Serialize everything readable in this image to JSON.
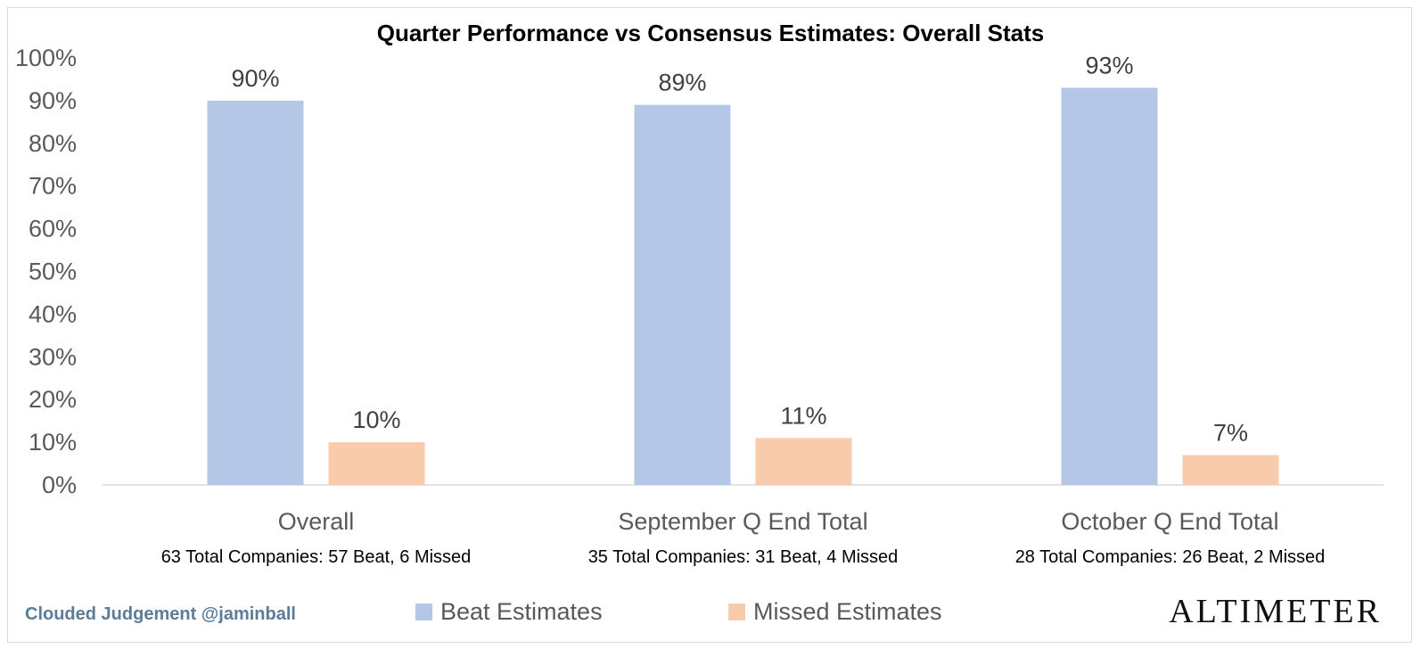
{
  "chart_data": {
    "type": "bar",
    "title": "Quarter Performance vs Consensus Estimates: Overall Stats",
    "categories": [
      "Overall",
      "September Q End Total",
      "October Q End Total"
    ],
    "category_subtitles": [
      "63 Total Companies: 57 Beat, 6 Missed",
      "35 Total Companies: 31 Beat, 4 Missed",
      "28 Total Companies: 26 Beat, 2 Missed"
    ],
    "series": [
      {
        "name": "Beat Estimates",
        "values": [
          90,
          89,
          93
        ],
        "labels": [
          "90%",
          "89%",
          "93%"
        ],
        "color": "#b4c7e7"
      },
      {
        "name": "Missed Estimates",
        "values": [
          10,
          11,
          7
        ],
        "labels": [
          "10%",
          "11%",
          "7%"
        ],
        "color": "#f8cbad"
      }
    ],
    "ylim": [
      0,
      100
    ],
    "y_ticks": [
      "0%",
      "10%",
      "20%",
      "30%",
      "40%",
      "50%",
      "60%",
      "70%",
      "80%",
      "90%",
      "100%"
    ],
    "grid": false,
    "legend_position": "bottom"
  },
  "footer": {
    "credit": "Clouded Judgement @jaminball",
    "brand": "ALTIMETER"
  }
}
